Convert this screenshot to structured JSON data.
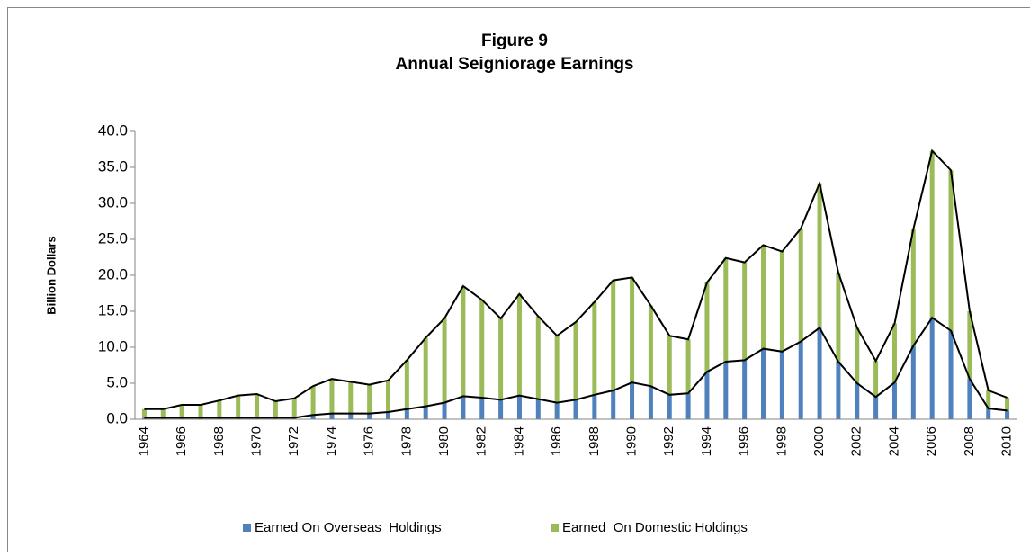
{
  "chart_data": {
    "type": "stacked_bar",
    "title": "Figure 9",
    "subtitle": "Annual Seigniorage Earnings",
    "y_label": "Billion Dollars",
    "categories": [
      "1964",
      null,
      "1966",
      null,
      "1968",
      null,
      "1970",
      null,
      "1972",
      null,
      "1974",
      null,
      "1976",
      null,
      "1978",
      null,
      "1980",
      null,
      "1982",
      null,
      "1984",
      null,
      "1986",
      null,
      "1988",
      null,
      "1990",
      null,
      "1992",
      null,
      "1994",
      null,
      "1996",
      null,
      "1998",
      null,
      "2000",
      null,
      "2002",
      null,
      "2004",
      null,
      "2006",
      null,
      "2008",
      null,
      "2010"
    ],
    "series": [
      {
        "name": "Earned On Overseas  Holdings",
        "color": "#4f81bd",
        "values": [
          0.2,
          0.2,
          0.2,
          0.2,
          0.2,
          0.2,
          0.2,
          0.2,
          0.2,
          0.6,
          0.8,
          0.8,
          0.8,
          1.0,
          1.4,
          1.8,
          2.3,
          3.2,
          3.0,
          2.7,
          3.3,
          2.8,
          2.3,
          2.7,
          3.4,
          4.0,
          5.1,
          4.6,
          3.4,
          3.6,
          6.6,
          8.0,
          8.2,
          9.8,
          9.4,
          10.8,
          12.7,
          8.0,
          5.0,
          3.1,
          5.1,
          10.2,
          14.1,
          12.3,
          5.6,
          1.5,
          1.2
        ]
      },
      {
        "name": "Earned  On Domestic Holdings",
        "color": "#9bbb59",
        "values": [
          1.2,
          1.2,
          1.8,
          1.8,
          2.4,
          3.1,
          3.3,
          2.3,
          2.7,
          4.0,
          4.8,
          4.4,
          4.0,
          4.4,
          6.8,
          9.5,
          11.7,
          15.3,
          13.6,
          11.3,
          14.1,
          11.5,
          9.3,
          10.8,
          12.9,
          15.3,
          14.6,
          11.2,
          8.2,
          7.5,
          12.4,
          14.4,
          13.6,
          14.4,
          13.9,
          15.7,
          20.1,
          12.4,
          7.7,
          5.0,
          8.2,
          16.2,
          23.2,
          22.3,
          9.4,
          2.5,
          1.8
        ]
      }
    ],
    "ylim": [
      0,
      40
    ],
    "yticks": [
      {
        "value": 0,
        "label": "0.0"
      },
      {
        "value": 5,
        "label": "5.0"
      },
      {
        "value": 10,
        "label": "10.0"
      },
      {
        "value": 15,
        "label": "15.0"
      },
      {
        "value": 20,
        "label": "20.0"
      },
      {
        "value": 25,
        "label": "25.0"
      },
      {
        "value": 30,
        "label": "30.0"
      },
      {
        "value": 35,
        "label": "35.0"
      },
      {
        "value": 40,
        "label": "40.0"
      }
    ],
    "line_color": "#000000",
    "legend": "bottom"
  }
}
